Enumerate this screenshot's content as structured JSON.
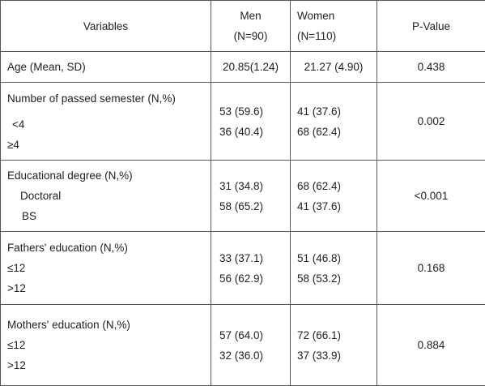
{
  "table": {
    "headers": {
      "variables": "Variables",
      "men": "Men",
      "men_n": "(N=90)",
      "women": "Women",
      "women_n": "(N=110)",
      "pvalue": "P-Value"
    },
    "rows": [
      {
        "label": "Age (Mean, SD)",
        "men": "20.85(1.24)",
        "women": "21.27 (4.90)",
        "pvalue": "0.438"
      },
      {
        "label": "Number of passed semester (N,%)",
        "sub": [
          "<4",
          "≥4"
        ],
        "men": [
          "53 (59.6)",
          "36 (40.4)"
        ],
        "women": [
          "41 (37.6)",
          "68 (62.4)"
        ],
        "pvalue": "0.002"
      },
      {
        "label": "Educational degree (N,%)",
        "sub": [
          "Doctoral",
          "BS"
        ],
        "men": [
          "31 (34.8)",
          "58 (65.2)"
        ],
        "women": [
          "68 (62.4)",
          "41 (37.6)"
        ],
        "pvalue": "<0.001"
      },
      {
        "label": "Fathers' education (N,%)",
        "sub": [
          "≤12",
          ">12"
        ],
        "men": [
          "33 (37.1)",
          "56 (62.9)"
        ],
        "women": [
          "51 (46.8)",
          "58 (53.2)"
        ],
        "pvalue": "0.168"
      },
      {
        "label": "Mothers' education (N,%)",
        "sub": [
          "≤12",
          ">12"
        ],
        "men": [
          "57 (64.0)",
          "32 (36.0)"
        ],
        "women": [
          "72 (66.1)",
          "37 (33.9)"
        ],
        "pvalue": "0.884"
      }
    ]
  }
}
